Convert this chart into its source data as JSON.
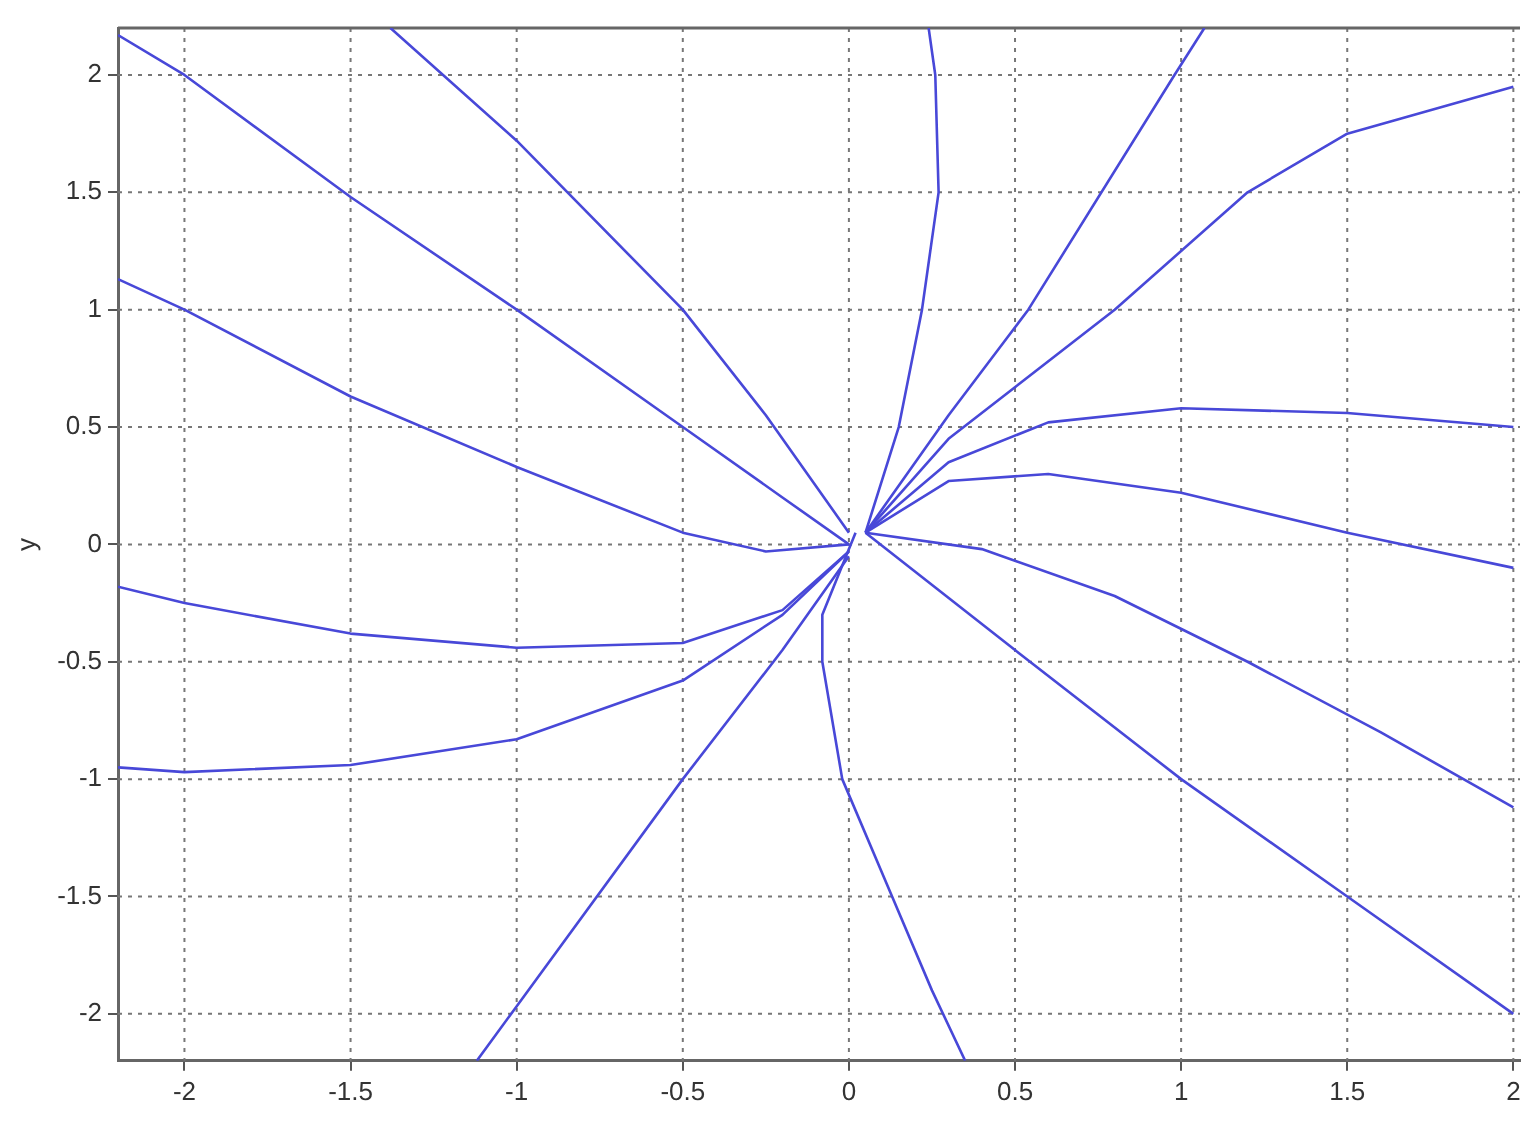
{
  "chart_data": {
    "type": "line",
    "ylabel": "y",
    "xlim": [
      -2.2,
      2.02
    ],
    "ylim": [
      -2.2,
      2.2
    ],
    "xticks": [
      -2,
      -1.5,
      -1,
      -0.5,
      0,
      0.5,
      1,
      1.5,
      2
    ],
    "yticks": [
      -2,
      -1.5,
      -1,
      -0.5,
      0,
      0.5,
      1,
      1.5,
      2
    ],
    "grid": true,
    "marker": "none",
    "line_style": "solid",
    "legend": false,
    "series": [
      {
        "color": "#4848d8",
        "x": [
          -2.2,
          -2,
          -1.5,
          -1,
          -0.5,
          -0.2,
          0
        ],
        "values": [
          2.17,
          2.0,
          1.48,
          1.0,
          0.5,
          0.2,
          0
        ]
      },
      {
        "color": "#4848d8",
        "x": [
          -2.2,
          -2,
          -1.5,
          -1,
          -0.5,
          -0.25,
          0
        ],
        "values": [
          1.13,
          1.0,
          0.63,
          0.33,
          0.05,
          -0.03,
          0
        ]
      },
      {
        "color": "#4848d8",
        "x": [
          -1.38,
          -1,
          -0.5,
          -0.25,
          0
        ],
        "values": [
          2.2,
          1.72,
          1.0,
          0.55,
          0.05
        ]
      },
      {
        "color": "#4848d8",
        "x": [
          -2.2,
          -2,
          -1.5,
          -1,
          -0.5,
          -0.2,
          0
        ],
        "values": [
          -0.18,
          -0.25,
          -0.38,
          -0.44,
          -0.42,
          -0.28,
          -0.03
        ]
      },
      {
        "color": "#4848d8",
        "x": [
          -2.2,
          -2,
          -1.5,
          -1,
          -0.5,
          -0.2,
          0
        ],
        "values": [
          -0.95,
          -0.97,
          -0.94,
          -0.83,
          -0.58,
          -0.3,
          -0.03
        ]
      },
      {
        "color": "#4848d8",
        "x": [
          -1.12,
          -0.5,
          -0.2,
          0
        ],
        "values": [
          -2.2,
          -1.0,
          -0.45,
          -0.05
        ]
      },
      {
        "color": "#4848d8",
        "x": [
          0.02,
          -0.08,
          -0.08,
          -0.02,
          0.13,
          0.25,
          0.35
        ],
        "values": [
          0.05,
          -0.3,
          -0.5,
          -1.0,
          -1.5,
          -1.9,
          -2.2
        ]
      },
      {
        "color": "#4848d8",
        "x": [
          0.05,
          0.15,
          0.22,
          0.27,
          0.26,
          0.24
        ],
        "values": [
          0.05,
          0.5,
          1.0,
          1.5,
          2.0,
          2.2
        ]
      },
      {
        "color": "#4848d8",
        "x": [
          0.05,
          0.3,
          0.54,
          0.98,
          1.07
        ],
        "values": [
          0.05,
          0.55,
          1.0,
          2.0,
          2.2
        ]
      },
      {
        "color": "#4848d8",
        "x": [
          0.05,
          0.3,
          0.8,
          1.2,
          1.5,
          2
        ],
        "values": [
          0.05,
          0.45,
          1.0,
          1.5,
          1.75,
          1.95
        ]
      },
      {
        "color": "#4848d8",
        "x": [
          0.05,
          0.3,
          0.6,
          1.0,
          1.5,
          2
        ],
        "values": [
          0.05,
          0.35,
          0.52,
          0.58,
          0.56,
          0.5
        ]
      },
      {
        "color": "#4848d8",
        "x": [
          0.05,
          0.3,
          0.6,
          1.0,
          1.5,
          2
        ],
        "values": [
          0.05,
          0.27,
          0.3,
          0.22,
          0.05,
          -0.1
        ]
      },
      {
        "color": "#4848d8",
        "x": [
          0.05,
          0.4,
          0.8,
          1.2,
          1.6,
          2
        ],
        "values": [
          0.05,
          -0.02,
          -0.22,
          -0.5,
          -0.8,
          -1.12
        ]
      },
      {
        "color": "#4848d8",
        "x": [
          0.05,
          0.5,
          1,
          1.5,
          2
        ],
        "values": [
          0.05,
          -0.45,
          -1.0,
          -1.5,
          -2.0
        ]
      }
    ]
  }
}
